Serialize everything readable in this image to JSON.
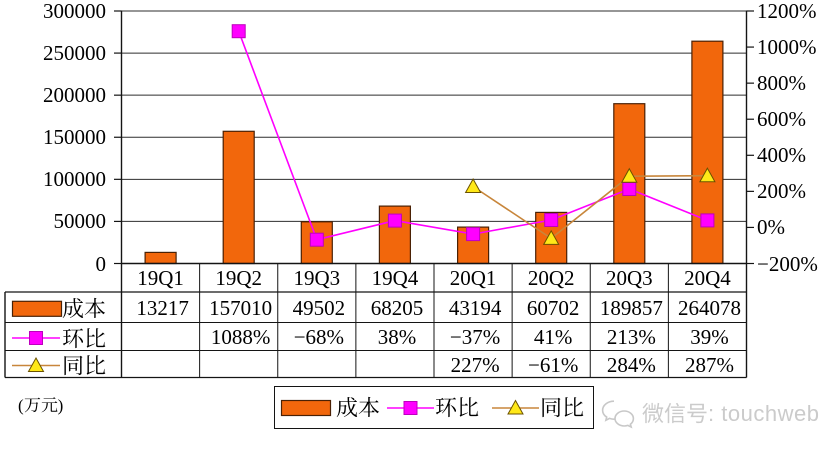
{
  "unit_label": "(万元)",
  "watermark": {
    "icon": "wechat-icon",
    "text": "微信号: touchweb"
  },
  "colors": {
    "background": "#ffffff",
    "bar_fill": "#F2670C",
    "bar_border": "#4A2105",
    "qoq_line": "#FF00FF",
    "qoq_marker": "#FF00FF",
    "qoq_marker_border": "#BD00BD",
    "yoy_line": "#C8863B",
    "yoy_marker": "#FFE818",
    "yoy_marker_border": "#6B5200",
    "grid_line": "#2e2e2e",
    "axis_line": "#141414",
    "table_border": "#141414",
    "text": "#000000",
    "watermark_text": "#cbcbcb"
  },
  "legend": {
    "position": "bottom",
    "items": [
      {
        "label": "成本",
        "key": "bar-swatch"
      },
      {
        "label": "环比",
        "key": "square-marker"
      },
      {
        "label": "同比",
        "key": "triangle-marker"
      }
    ]
  },
  "chart_data": {
    "type": "combo",
    "categories": [
      "19Q1",
      "19Q2",
      "19Q3",
      "19Q4",
      "20Q1",
      "20Q2",
      "20Q3",
      "20Q4"
    ],
    "series": [
      {
        "name": "成本",
        "chart_type": "bar",
        "axis": "left",
        "unit": "万元",
        "values": [
          13217,
          157010,
          49502,
          68205,
          43194,
          60702,
          189857,
          264078
        ]
      },
      {
        "name": "环比",
        "chart_type": "line",
        "marker": "square",
        "axis": "right",
        "unit": "%",
        "values": [
          null,
          1088,
          -68,
          38,
          -37,
          41,
          213,
          39
        ]
      },
      {
        "name": "同比",
        "chart_type": "line",
        "marker": "triangle",
        "axis": "right",
        "unit": "%",
        "values": [
          null,
          null,
          null,
          null,
          227,
          -61,
          284,
          287
        ]
      }
    ],
    "left_axis": {
      "min": 0,
      "max": 300000,
      "step": 50000,
      "tick_labels": [
        "300000",
        "250000",
        "200000",
        "150000",
        "100000",
        "50000",
        "0"
      ]
    },
    "right_axis": {
      "min": -200,
      "max": 1200,
      "step": 200,
      "tick_labels": [
        "1200%",
        "1000%",
        "800%",
        "600%",
        "400%",
        "200%",
        "0%",
        "−200%"
      ]
    },
    "grid": "horizontal",
    "legend_position": "bottom",
    "data_table": {
      "rows": [
        {
          "label": "成本",
          "cells": [
            "13217",
            "157010",
            "49502",
            "68205",
            "43194",
            "60702",
            "189857",
            "264078"
          ]
        },
        {
          "label": "环比",
          "cells": [
            "",
            "1088%",
            "−68%",
            "38%",
            "−37%",
            "41%",
            "213%",
            "39%"
          ]
        },
        {
          "label": "同比",
          "cells": [
            "",
            "",
            "",
            "",
            "227%",
            "−61%",
            "284%",
            "287%"
          ]
        }
      ]
    }
  }
}
